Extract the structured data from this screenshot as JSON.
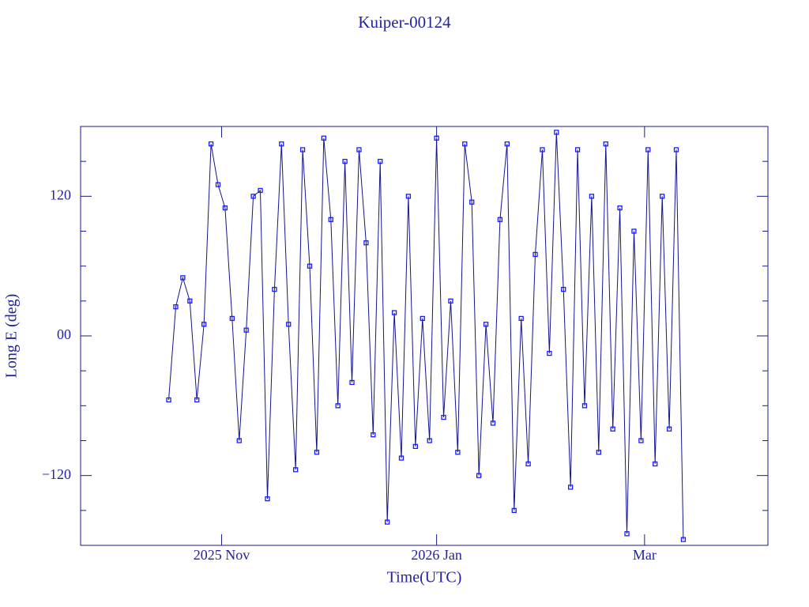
{
  "chart_data": {
    "type": "line",
    "title": "Kuiper-00124",
    "xlabel": "Time(UTC)",
    "ylabel": "Long E (deg)",
    "xlim": [
      "2025-09-22",
      "2026-04-05"
    ],
    "xticks": [
      {
        "value": "2025-11-01",
        "label": "2025 Nov"
      },
      {
        "value": "2026-01-01",
        "label": "2026 Jan"
      },
      {
        "value": "2026-03-01",
        "label": "Mar"
      }
    ],
    "ylim": [
      -180,
      180
    ],
    "yticks": [
      {
        "value": -120,
        "label": "−120"
      },
      {
        "value": 0,
        "label": "00"
      },
      120
    ],
    "yminorticks": [
      -150,
      -90,
      -60,
      -30,
      30,
      60,
      90,
      150
    ],
    "x": [
      "2025-10-17",
      "2025-10-19",
      "2025-10-21",
      "2025-10-23",
      "2025-10-25",
      "2025-10-27",
      "2025-10-29",
      "2025-10-31",
      "2025-11-02",
      "2025-11-04",
      "2025-11-06",
      "2025-11-08",
      "2025-11-10",
      "2025-11-12",
      "2025-11-14",
      "2025-11-16",
      "2025-11-18",
      "2025-11-20",
      "2025-11-22",
      "2025-11-24",
      "2025-11-26",
      "2025-11-28",
      "2025-11-30",
      "2025-12-02",
      "2025-12-04",
      "2025-12-06",
      "2025-12-08",
      "2025-12-10",
      "2025-12-12",
      "2025-12-14",
      "2025-12-16",
      "2025-12-18",
      "2025-12-20",
      "2025-12-22",
      "2025-12-24",
      "2025-12-26",
      "2025-12-28",
      "2025-12-30",
      "2026-01-01",
      "2026-01-03",
      "2026-01-05",
      "2026-01-07",
      "2026-01-09",
      "2026-01-11",
      "2026-01-13",
      "2026-01-15",
      "2026-01-17",
      "2026-01-19",
      "2026-01-21",
      "2026-01-23",
      "2026-01-25",
      "2026-01-27",
      "2026-01-29",
      "2026-01-31",
      "2026-02-02",
      "2026-02-04",
      "2026-02-06",
      "2026-02-08",
      "2026-02-10",
      "2026-02-12",
      "2026-02-14",
      "2026-02-16",
      "2026-02-18",
      "2026-02-20",
      "2026-02-22",
      "2026-02-24",
      "2026-02-26",
      "2026-02-28",
      "2026-03-02",
      "2026-03-04",
      "2026-03-06",
      "2026-03-08",
      "2026-03-10",
      "2026-03-12"
    ],
    "series": [
      {
        "color": "#1a1aff",
        "line_color": "#14148c",
        "values": [
          -55,
          25,
          50,
          30,
          -55,
          10,
          165,
          130,
          110,
          15,
          -90,
          5,
          120,
          125,
          -140,
          40,
          165,
          10,
          -115,
          160,
          60,
          -100,
          170,
          100,
          -60,
          150,
          -40,
          160,
          80,
          -85,
          150,
          -160,
          20,
          -105,
          120,
          -95,
          15,
          -90,
          170,
          -70,
          30,
          -100,
          165,
          115,
          -120,
          10,
          -75,
          100,
          165,
          -150,
          15,
          -110,
          70,
          160,
          -15,
          175,
          40,
          -130,
          160,
          -60,
          120,
          -100,
          165,
          -80,
          110,
          -170,
          90,
          -90,
          160,
          -110,
          120,
          -80,
          160,
          -175
        ]
      }
    ]
  }
}
